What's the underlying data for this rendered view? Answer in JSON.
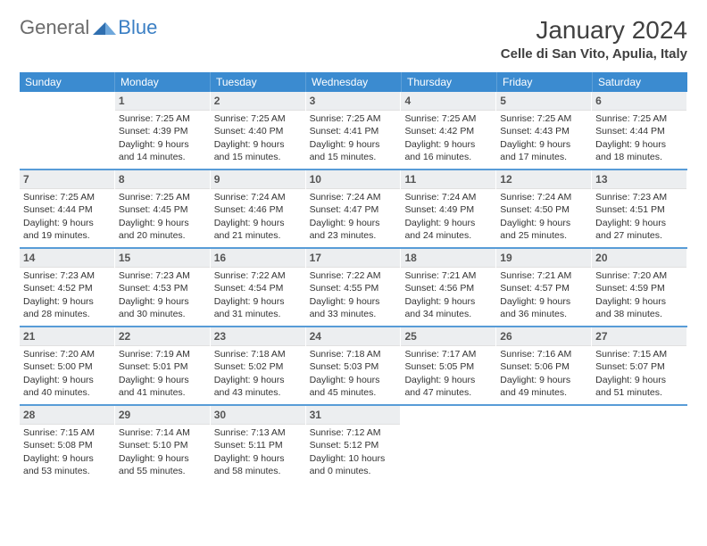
{
  "logo": {
    "part1": "General",
    "part2": "Blue"
  },
  "title": "January 2024",
  "location": "Celle di San Vito, Apulia, Italy",
  "colors": {
    "header_bg": "#3b8bd0",
    "header_text": "#ffffff",
    "daynum_bg": "#eceef0",
    "sep": "#3b8bd0",
    "logo_gray": "#6b6b6b",
    "logo_blue": "#3b7fc4"
  },
  "dow": [
    "Sunday",
    "Monday",
    "Tuesday",
    "Wednesday",
    "Thursday",
    "Friday",
    "Saturday"
  ],
  "weeks": [
    [
      {
        "n": "",
        "sr": "",
        "ss": "",
        "dl": ""
      },
      {
        "n": "1",
        "sr": "Sunrise: 7:25 AM",
        "ss": "Sunset: 4:39 PM",
        "dl": "Daylight: 9 hours and 14 minutes."
      },
      {
        "n": "2",
        "sr": "Sunrise: 7:25 AM",
        "ss": "Sunset: 4:40 PM",
        "dl": "Daylight: 9 hours and 15 minutes."
      },
      {
        "n": "3",
        "sr": "Sunrise: 7:25 AM",
        "ss": "Sunset: 4:41 PM",
        "dl": "Daylight: 9 hours and 15 minutes."
      },
      {
        "n": "4",
        "sr": "Sunrise: 7:25 AM",
        "ss": "Sunset: 4:42 PM",
        "dl": "Daylight: 9 hours and 16 minutes."
      },
      {
        "n": "5",
        "sr": "Sunrise: 7:25 AM",
        "ss": "Sunset: 4:43 PM",
        "dl": "Daylight: 9 hours and 17 minutes."
      },
      {
        "n": "6",
        "sr": "Sunrise: 7:25 AM",
        "ss": "Sunset: 4:44 PM",
        "dl": "Daylight: 9 hours and 18 minutes."
      }
    ],
    [
      {
        "n": "7",
        "sr": "Sunrise: 7:25 AM",
        "ss": "Sunset: 4:44 PM",
        "dl": "Daylight: 9 hours and 19 minutes."
      },
      {
        "n": "8",
        "sr": "Sunrise: 7:25 AM",
        "ss": "Sunset: 4:45 PM",
        "dl": "Daylight: 9 hours and 20 minutes."
      },
      {
        "n": "9",
        "sr": "Sunrise: 7:24 AM",
        "ss": "Sunset: 4:46 PM",
        "dl": "Daylight: 9 hours and 21 minutes."
      },
      {
        "n": "10",
        "sr": "Sunrise: 7:24 AM",
        "ss": "Sunset: 4:47 PM",
        "dl": "Daylight: 9 hours and 23 minutes."
      },
      {
        "n": "11",
        "sr": "Sunrise: 7:24 AM",
        "ss": "Sunset: 4:49 PM",
        "dl": "Daylight: 9 hours and 24 minutes."
      },
      {
        "n": "12",
        "sr": "Sunrise: 7:24 AM",
        "ss": "Sunset: 4:50 PM",
        "dl": "Daylight: 9 hours and 25 minutes."
      },
      {
        "n": "13",
        "sr": "Sunrise: 7:23 AM",
        "ss": "Sunset: 4:51 PM",
        "dl": "Daylight: 9 hours and 27 minutes."
      }
    ],
    [
      {
        "n": "14",
        "sr": "Sunrise: 7:23 AM",
        "ss": "Sunset: 4:52 PM",
        "dl": "Daylight: 9 hours and 28 minutes."
      },
      {
        "n": "15",
        "sr": "Sunrise: 7:23 AM",
        "ss": "Sunset: 4:53 PM",
        "dl": "Daylight: 9 hours and 30 minutes."
      },
      {
        "n": "16",
        "sr": "Sunrise: 7:22 AM",
        "ss": "Sunset: 4:54 PM",
        "dl": "Daylight: 9 hours and 31 minutes."
      },
      {
        "n": "17",
        "sr": "Sunrise: 7:22 AM",
        "ss": "Sunset: 4:55 PM",
        "dl": "Daylight: 9 hours and 33 minutes."
      },
      {
        "n": "18",
        "sr": "Sunrise: 7:21 AM",
        "ss": "Sunset: 4:56 PM",
        "dl": "Daylight: 9 hours and 34 minutes."
      },
      {
        "n": "19",
        "sr": "Sunrise: 7:21 AM",
        "ss": "Sunset: 4:57 PM",
        "dl": "Daylight: 9 hours and 36 minutes."
      },
      {
        "n": "20",
        "sr": "Sunrise: 7:20 AM",
        "ss": "Sunset: 4:59 PM",
        "dl": "Daylight: 9 hours and 38 minutes."
      }
    ],
    [
      {
        "n": "21",
        "sr": "Sunrise: 7:20 AM",
        "ss": "Sunset: 5:00 PM",
        "dl": "Daylight: 9 hours and 40 minutes."
      },
      {
        "n": "22",
        "sr": "Sunrise: 7:19 AM",
        "ss": "Sunset: 5:01 PM",
        "dl": "Daylight: 9 hours and 41 minutes."
      },
      {
        "n": "23",
        "sr": "Sunrise: 7:18 AM",
        "ss": "Sunset: 5:02 PM",
        "dl": "Daylight: 9 hours and 43 minutes."
      },
      {
        "n": "24",
        "sr": "Sunrise: 7:18 AM",
        "ss": "Sunset: 5:03 PM",
        "dl": "Daylight: 9 hours and 45 minutes."
      },
      {
        "n": "25",
        "sr": "Sunrise: 7:17 AM",
        "ss": "Sunset: 5:05 PM",
        "dl": "Daylight: 9 hours and 47 minutes."
      },
      {
        "n": "26",
        "sr": "Sunrise: 7:16 AM",
        "ss": "Sunset: 5:06 PM",
        "dl": "Daylight: 9 hours and 49 minutes."
      },
      {
        "n": "27",
        "sr": "Sunrise: 7:15 AM",
        "ss": "Sunset: 5:07 PM",
        "dl": "Daylight: 9 hours and 51 minutes."
      }
    ],
    [
      {
        "n": "28",
        "sr": "Sunrise: 7:15 AM",
        "ss": "Sunset: 5:08 PM",
        "dl": "Daylight: 9 hours and 53 minutes."
      },
      {
        "n": "29",
        "sr": "Sunrise: 7:14 AM",
        "ss": "Sunset: 5:10 PM",
        "dl": "Daylight: 9 hours and 55 minutes."
      },
      {
        "n": "30",
        "sr": "Sunrise: 7:13 AM",
        "ss": "Sunset: 5:11 PM",
        "dl": "Daylight: 9 hours and 58 minutes."
      },
      {
        "n": "31",
        "sr": "Sunrise: 7:12 AM",
        "ss": "Sunset: 5:12 PM",
        "dl": "Daylight: 10 hours and 0 minutes."
      },
      {
        "n": "",
        "sr": "",
        "ss": "",
        "dl": ""
      },
      {
        "n": "",
        "sr": "",
        "ss": "",
        "dl": ""
      },
      {
        "n": "",
        "sr": "",
        "ss": "",
        "dl": ""
      }
    ]
  ]
}
